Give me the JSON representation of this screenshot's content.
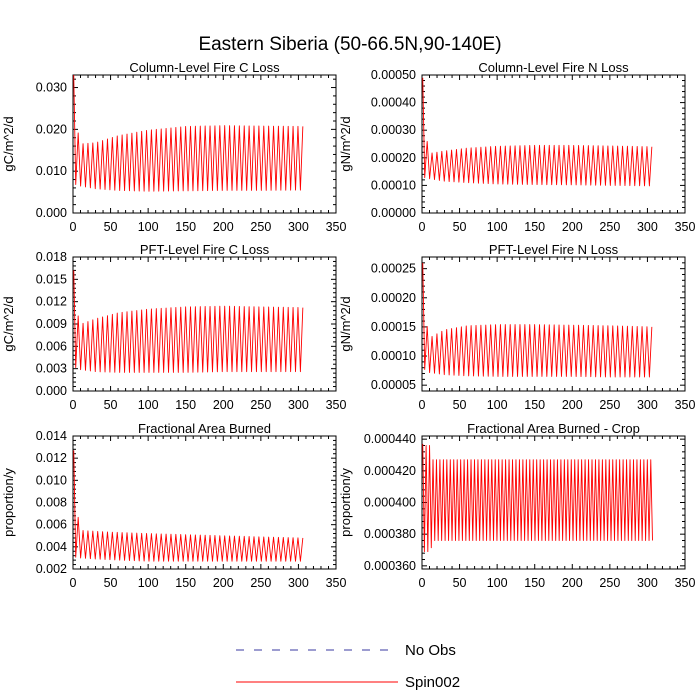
{
  "figure_title": "Eastern Siberia (50-66.5N,90-140E)",
  "legend": [
    {
      "label": "No Obs",
      "color": "#3a3aa0",
      "style": "dashed"
    },
    {
      "label": "Spin002",
      "color": "#ff0000",
      "style": "solid"
    }
  ],
  "chart_data": [
    {
      "type": "line",
      "title": "Column-Level Fire C Loss",
      "xlabel": "",
      "ylabel": "gC/m^2/d",
      "xlim": [
        0,
        350
      ],
      "ylim": [
        0,
        0.033
      ],
      "xticks": [
        0,
        50,
        100,
        150,
        200,
        250,
        300,
        350
      ],
      "yticks": [
        "0.000",
        "0.010",
        "0.020",
        "0.030"
      ],
      "ytick_values": [
        0,
        0.01,
        0.02,
        0.03
      ],
      "grid": false,
      "series": [
        {
          "name": "Spin002",
          "color": "#ff0000",
          "x_start": 1,
          "x_end": 309,
          "period_years": 6.5,
          "initial_spike": 0.033,
          "maxima_envelope": {
            "x": [
              1,
              8,
              30,
              60,
              100,
              150,
              200,
              250,
              309
            ],
            "y": [
              0.033,
              0.0165,
              0.0168,
              0.0185,
              0.0198,
              0.0207,
              0.0209,
              0.0208,
              0.0207
            ]
          },
          "minima_envelope": {
            "x": [
              1,
              8,
              30,
              60,
              100,
              150,
              200,
              250,
              309
            ],
            "y": [
              0.007,
              0.0065,
              0.0058,
              0.0054,
              0.0052,
              0.0053,
              0.0054,
              0.0054,
              0.0055
            ]
          }
        }
      ]
    },
    {
      "type": "line",
      "title": "Column-Level Fire N Loss",
      "xlabel": "",
      "ylabel": "gN/m^2/d",
      "xlim": [
        0,
        350
      ],
      "ylim": [
        0,
        0.0005
      ],
      "xticks": [
        0,
        50,
        100,
        150,
        200,
        250,
        300,
        350
      ],
      "yticks": [
        "0.00000",
        "0.00010",
        "0.00020",
        "0.00030",
        "0.00040",
        "0.00050"
      ],
      "ytick_values": [
        0,
        0.0001,
        0.0002,
        0.0003,
        0.0004,
        0.0005
      ],
      "grid": false,
      "series": [
        {
          "name": "Spin002",
          "color": "#ff0000",
          "x_start": 1,
          "x_end": 309,
          "period_years": 6.5,
          "initial_spike": 0.00049,
          "maxima_envelope": {
            "x": [
              1,
              8,
              30,
              60,
              100,
              150,
              200,
              250,
              309
            ],
            "y": [
              0.00049,
              0.000215,
              0.000225,
              0.000235,
              0.000242,
              0.000245,
              0.000245,
              0.000243,
              0.00024
            ]
          },
          "minima_envelope": {
            "x": [
              1,
              8,
              30,
              60,
              100,
              150,
              200,
              250,
              309
            ],
            "y": [
              0.00013,
              0.000125,
              0.000115,
              0.00011,
              0.000105,
              0.000103,
              0.000102,
              0.0001,
              9.8e-05
            ]
          }
        }
      ]
    },
    {
      "type": "line",
      "title": "PFT-Level Fire C Loss",
      "xlabel": "",
      "ylabel": "gC/m^2/d",
      "xlim": [
        0,
        350
      ],
      "ylim": [
        0,
        0.018
      ],
      "xticks": [
        0,
        50,
        100,
        150,
        200,
        250,
        300,
        350
      ],
      "yticks": [
        "0.000",
        "0.003",
        "0.006",
        "0.009",
        "0.012",
        "0.015",
        "0.018"
      ],
      "ytick_values": [
        0,
        0.003,
        0.006,
        0.009,
        0.012,
        0.015,
        0.018
      ],
      "grid": false,
      "series": [
        {
          "name": "Spin002",
          "color": "#ff0000",
          "x_start": 1,
          "x_end": 309,
          "period_years": 6.5,
          "initial_spike": 0.0162,
          "maxima_envelope": {
            "x": [
              1,
              8,
              30,
              60,
              100,
              150,
              200,
              250,
              309
            ],
            "y": [
              0.0162,
              0.0089,
              0.0097,
              0.0105,
              0.011,
              0.0113,
              0.0114,
              0.0113,
              0.0112
            ]
          },
          "minima_envelope": {
            "x": [
              1,
              8,
              30,
              60,
              100,
              150,
              200,
              250,
              309
            ],
            "y": [
              0.0033,
              0.0029,
              0.0026,
              0.0025,
              0.0025,
              0.0025,
              0.0026,
              0.0026,
              0.0026
            ]
          }
        }
      ]
    },
    {
      "type": "line",
      "title": "PFT-Level Fire N Loss",
      "xlabel": "",
      "ylabel": "gN/m^2/d",
      "xlim": [
        0,
        350
      ],
      "ylim": [
        4e-05,
        0.00027
      ],
      "xticks": [
        0,
        50,
        100,
        150,
        200,
        250,
        300,
        350
      ],
      "yticks": [
        "0.00005",
        "0.00010",
        "0.00015",
        "0.00020",
        "0.00025"
      ],
      "ytick_values": [
        5e-05,
        0.0001,
        0.00015,
        0.0002,
        0.00025
      ],
      "grid": false,
      "series": [
        {
          "name": "Spin002",
          "color": "#ff0000",
          "x_start": 1,
          "x_end": 309,
          "period_years": 6.5,
          "initial_spike": 0.00026,
          "maxima_envelope": {
            "x": [
              1,
              8,
              30,
              60,
              100,
              150,
              200,
              250,
              309
            ],
            "y": [
              0.00026,
              0.00013,
              0.000145,
              0.000152,
              0.000154,
              0.000154,
              0.000153,
              0.000152,
              0.00015
            ]
          },
          "minima_envelope": {
            "x": [
              1,
              8,
              30,
              60,
              100,
              150,
              200,
              250,
              309
            ],
            "y": [
              8e-05,
              7.2e-05,
              6.8e-05,
              6.6e-05,
              6.5e-05,
              6.5e-05,
              6.5e-05,
              6.4e-05,
              6.4e-05
            ]
          }
        }
      ]
    },
    {
      "type": "line",
      "title": "Fractional Area Burned",
      "xlabel": "",
      "ylabel": "proportion/y",
      "xlim": [
        0,
        350
      ],
      "ylim": [
        0.002,
        0.014
      ],
      "xticks": [
        0,
        50,
        100,
        150,
        200,
        250,
        300,
        350
      ],
      "yticks": [
        "0.002",
        "0.004",
        "0.006",
        "0.008",
        "0.010",
        "0.012",
        "0.014"
      ],
      "ytick_values": [
        0.002,
        0.004,
        0.006,
        0.008,
        0.01,
        0.012,
        0.014
      ],
      "grid": false,
      "series": [
        {
          "name": "Spin002",
          "color": "#ff0000",
          "x_start": 1,
          "x_end": 309,
          "period_years": 6.5,
          "initial_spike": 0.0127,
          "maxima_envelope": {
            "x": [
              1,
              8,
              30,
              60,
              100,
              150,
              200,
              250,
              309
            ],
            "y": [
              0.0127,
              0.0055,
              0.0054,
              0.0053,
              0.0052,
              0.0051,
              0.005,
              0.0049,
              0.0048
            ]
          },
          "minima_envelope": {
            "x": [
              1,
              8,
              30,
              60,
              100,
              150,
              200,
              250,
              309
            ],
            "y": [
              0.0031,
              0.003,
              0.0029,
              0.0028,
              0.0027,
              0.0027,
              0.0027,
              0.0027,
              0.0027
            ]
          }
        }
      ]
    },
    {
      "type": "line",
      "title": "Fractional Area Burned - Crop",
      "xlabel": "",
      "ylabel": "proportion/y",
      "xlim": [
        0,
        350
      ],
      "ylim": [
        0.000358,
        0.000442
      ],
      "xticks": [
        0,
        50,
        100,
        150,
        200,
        250,
        300,
        350
      ],
      "yticks": [
        "0.000360",
        "0.000380",
        "0.000400",
        "0.000420",
        "0.000440"
      ],
      "ytick_values": [
        0.00036,
        0.00038,
        0.0004,
        0.00042,
        0.00044
      ],
      "grid": false,
      "series": [
        {
          "name": "Spin002",
          "color": "#ff0000",
          "x_start": 1,
          "x_end": 309,
          "period_years": 4.6,
          "initial_spike": 0.000437,
          "maxima_envelope": {
            "x": [
              1,
              12,
              13,
              309
            ],
            "y": [
              0.000436,
              0.000436,
              0.000427,
              0.000427
            ]
          },
          "minima_envelope": {
            "x": [
              1,
              12,
              13,
              309
            ],
            "y": [
              0.000369,
              0.000369,
              0.000376,
              0.000376
            ]
          }
        }
      ]
    }
  ]
}
